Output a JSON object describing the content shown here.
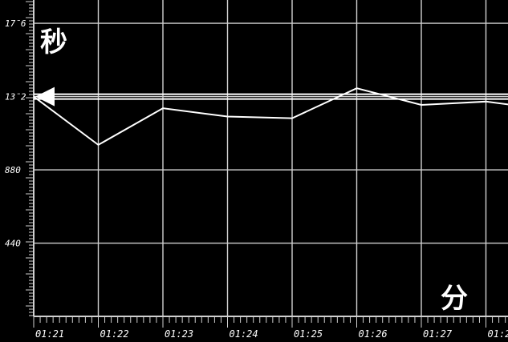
{
  "chart_data": {
    "type": "line",
    "ylabel": "秒",
    "xlabel": "分",
    "x_ticks": [
      "01:21",
      "01:22",
      "01:23",
      "01:24",
      "01:25",
      "01:26",
      "01:27",
      "01:2"
    ],
    "y_ticks": [
      {
        "value": 1760,
        "label": "17̄6"
      },
      {
        "value": 1320,
        "label": "13̄2"
      },
      {
        "value": 880,
        "label": "880"
      },
      {
        "value": 440,
        "label": "440"
      }
    ],
    "ylim": [
      0,
      1900
    ],
    "xlim": [
      0,
      7.4
    ],
    "grid": true,
    "series": [
      {
        "x": [
          0,
          1,
          2,
          3,
          4,
          5,
          6,
          7,
          7.4
        ],
        "values": [
          1320,
          1030,
          1250,
          1200,
          1190,
          1370,
          1270,
          1290,
          1270
        ]
      }
    ],
    "reference_line": 1320,
    "marker_value": 1320
  },
  "colors": {
    "background": "#000000",
    "grid": "#d0d0d0",
    "line": "#ffffff",
    "text": "#ffffff"
  }
}
